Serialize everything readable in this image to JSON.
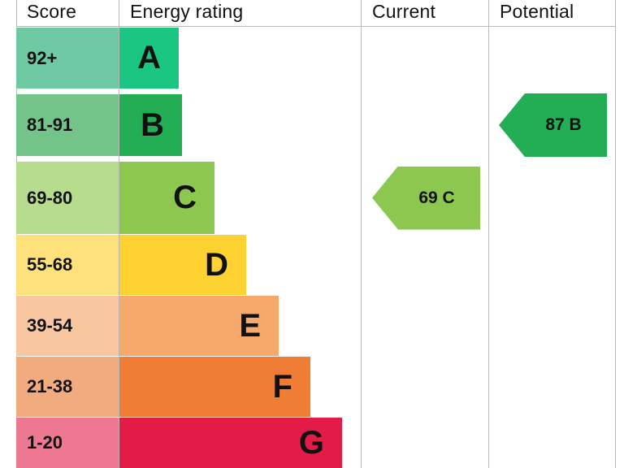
{
  "headers": {
    "score": "Score",
    "energy_rating": "Energy rating",
    "current": "Current",
    "potential": "Potential"
  },
  "chart_data": {
    "type": "bar",
    "title": "",
    "categories": [
      "A",
      "B",
      "C",
      "D",
      "E",
      "F",
      "G"
    ],
    "score_ranges": [
      "92+",
      "81-91",
      "69-80",
      "55-68",
      "39-54",
      "21-38",
      "1-20"
    ],
    "band_colors": [
      "#1ac681",
      "#23ad55",
      "#8cc74f",
      "#fcd130",
      "#f7a86b",
      "#ef7d36",
      "#e31b47"
    ],
    "score_colors": [
      "#6fc9a3",
      "#74c48a",
      "#b6dd8e",
      "#fde27c",
      "#f8c6a0",
      "#f1ab7f",
      "#ee7891"
    ],
    "current": {
      "value": 69,
      "band": "C",
      "label": "69 C",
      "color": "#8cc74f"
    },
    "potential": {
      "value": 87,
      "band": "B",
      "label": "87 B",
      "color": "#23ad55"
    }
  }
}
